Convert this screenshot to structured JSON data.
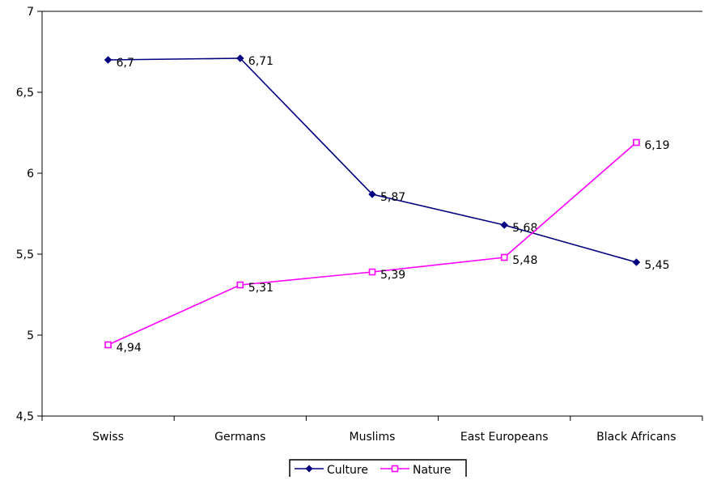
{
  "chart_data": {
    "type": "line",
    "categories": [
      "Swiss",
      "Germans",
      "Muslims",
      "East Europeans",
      "Black Africans"
    ],
    "series": [
      {
        "name": "Culture",
        "values": [
          6.7,
          6.71,
          5.87,
          5.68,
          5.45
        ],
        "labels": [
          "6,7",
          "6,71",
          "5,87",
          "5,68",
          "5,45"
        ],
        "color": "#000080",
        "marker": "diamond"
      },
      {
        "name": "Nature",
        "values": [
          4.94,
          5.31,
          5.39,
          5.48,
          6.19
        ],
        "labels": [
          "4,94",
          "5,31",
          "5,39",
          "5,48",
          "6,19"
        ],
        "color": "#ff00ff",
        "marker": "square"
      }
    ],
    "ylim": [
      4.5,
      7
    ],
    "yticks": [
      4.5,
      5,
      5.5,
      6,
      6.5,
      7
    ],
    "ytick_labels": [
      "4,5",
      "5",
      "5,5",
      "6",
      "6,5",
      "7"
    ],
    "title": "",
    "xlabel": "",
    "ylabel": "",
    "grid": true,
    "legend": "bottom"
  }
}
